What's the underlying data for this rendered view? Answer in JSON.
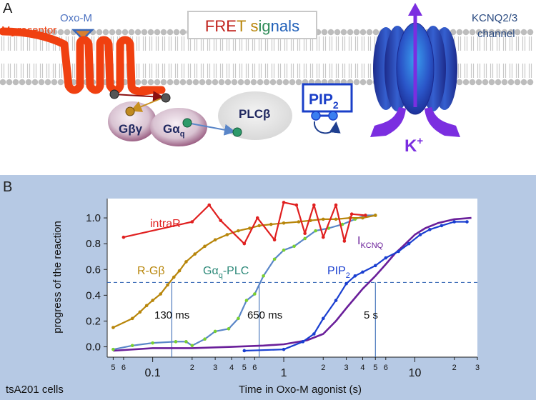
{
  "panelA": {
    "label": "A",
    "fret_box": {
      "letters": [
        {
          "ch": "F",
          "color": "#c0201a"
        },
        {
          "ch": "R",
          "color": "#c0201a"
        },
        {
          "ch": "E",
          "color": "#c0201a"
        },
        {
          "ch": "T",
          "color": "#b8860b"
        },
        {
          "ch": " ",
          "color": "#000000"
        },
        {
          "ch": "s",
          "color": "#b8860b"
        },
        {
          "ch": "i",
          "color": "#2e8b57"
        },
        {
          "ch": "g",
          "color": "#2e8b57"
        },
        {
          "ch": "n",
          "color": "#1f5fb8"
        },
        {
          "ch": "a",
          "color": "#1f5fb8"
        },
        {
          "ch": "l",
          "color": "#1f5fb8"
        },
        {
          "ch": "s",
          "color": "#1f5fb8"
        }
      ]
    },
    "m1_label": "M",
    "m1_sub": "1",
    "m1_rest": " receptor",
    "oxo_label": "Oxo-M",
    "gbg_label": "Gβγ",
    "gaq_main": "Gα",
    "gaq_sub": "q",
    "plc_label": "PLCβ",
    "pip_main": "PIP",
    "pip_sub": "2",
    "kcnq_line1": "KCNQ2/3",
    "kcnq_line2": "channel",
    "k_main": "K",
    "k_sup": "+",
    "colors": {
      "receptor": "#f04010",
      "channel": "#2a3fc0",
      "potassium": "#7b2ee0",
      "pip": "#1a3fc8"
    }
  },
  "panelB": {
    "label": "B",
    "cells_label": "tsA201 cells",
    "xlabel": "Time in Oxo-M agonist (s)",
    "ylabel": "progress of the reaction",
    "series_labels": {
      "intraR": "intraR",
      "rgb": "R-Gβ",
      "gaq_main": "Gα",
      "gaq_sub": "q",
      "gaq_rest": "-PLC",
      "pip_main": "PIP",
      "pip_sub": "2",
      "ik_main": "I",
      "ik_sub": "KCNQ"
    },
    "halftimes": [
      {
        "x": 0.14,
        "label": "130 ms"
      },
      {
        "x": 0.65,
        "label": "650 ms"
      },
      {
        "x": 5,
        "label": "5 s"
      }
    ]
  },
  "chart_data": {
    "type": "line",
    "xscale": "log",
    "xlim": [
      0.045,
      30
    ],
    "ylim": [
      -0.08,
      1.15
    ],
    "xticks_major": [
      0.1,
      1,
      10
    ],
    "xtick_labels_major": [
      "0.1",
      "1",
      "10"
    ],
    "xticks_minor": [
      0.05,
      0.06,
      0.2,
      0.3,
      0.4,
      0.5,
      0.6,
      2,
      3,
      4,
      5,
      6,
      20,
      30
    ],
    "xtick_labels_minor": [
      "5",
      "6",
      "2",
      "3",
      "4",
      "5",
      "6",
      "2",
      "3",
      "4",
      "5",
      "6",
      "2",
      "3"
    ],
    "yticks": [
      0.0,
      0.2,
      0.4,
      0.6,
      0.8,
      1.0
    ],
    "ytick_labels": [
      "0.0",
      "0.2",
      "0.4",
      "0.6",
      "0.8",
      "1.0"
    ],
    "hline": 0.5,
    "xlabel": "Time in Oxo-M agonist (s)",
    "ylabel": "progress of the reaction",
    "series": [
      {
        "name": "intraR",
        "color": "#e02020",
        "x": [
          0.06,
          0.2,
          0.27,
          0.33,
          0.5,
          0.63,
          0.85,
          1.0,
          1.25,
          1.45,
          1.7,
          2.0,
          2.5,
          2.9,
          3.3,
          4.2
        ],
        "y": [
          0.85,
          0.97,
          1.1,
          0.98,
          0.8,
          1.0,
          0.83,
          1.12,
          1.1,
          0.88,
          1.1,
          0.85,
          1.1,
          0.82,
          1.03,
          1.02
        ]
      },
      {
        "name": "R-Gβ",
        "color": "#b8860b",
        "x": [
          0.05,
          0.07,
          0.08,
          0.09,
          0.1,
          0.115,
          0.13,
          0.145,
          0.16,
          0.18,
          0.21,
          0.25,
          0.3,
          0.37,
          0.45,
          0.55,
          0.65,
          0.8,
          1.0,
          1.3,
          1.6,
          2.0,
          2.5,
          3.2,
          4.0,
          5.0
        ],
        "y": [
          0.15,
          0.22,
          0.27,
          0.32,
          0.36,
          0.41,
          0.48,
          0.54,
          0.59,
          0.66,
          0.72,
          0.78,
          0.83,
          0.87,
          0.9,
          0.92,
          0.94,
          0.95,
          0.96,
          0.97,
          0.98,
          0.99,
          0.99,
          1.0,
          1.0,
          1.02
        ]
      },
      {
        "name": "Gαq-PLC",
        "color": "#5a86c8",
        "x": [
          0.05,
          0.07,
          0.1,
          0.15,
          0.18,
          0.2,
          0.25,
          0.3,
          0.38,
          0.45,
          0.52,
          0.6,
          0.7,
          0.85,
          1.0,
          1.2,
          1.45,
          1.75,
          2.2,
          2.8,
          3.5,
          4.2,
          5.0
        ],
        "y": [
          -0.02,
          0.01,
          0.03,
          0.04,
          0.04,
          0.01,
          0.06,
          0.12,
          0.14,
          0.22,
          0.36,
          0.41,
          0.55,
          0.68,
          0.75,
          0.78,
          0.84,
          0.9,
          0.92,
          0.95,
          0.99,
          1.02,
          1.02
        ]
      },
      {
        "name": "PIP2",
        "color": "#1a3fd0",
        "x": [
          0.5,
          1.0,
          1.4,
          1.7,
          2.0,
          2.5,
          3.0,
          3.5,
          4.0,
          5.0,
          6.0,
          7.5,
          9.0,
          11,
          13,
          16,
          20,
          25
        ],
        "y": [
          -0.03,
          -0.02,
          0.04,
          0.1,
          0.22,
          0.36,
          0.49,
          0.55,
          0.58,
          0.63,
          0.69,
          0.74,
          0.8,
          0.87,
          0.91,
          0.94,
          0.97,
          0.97
        ]
      },
      {
        "name": "IKCNQ",
        "color": "#6a1f9a",
        "x": [
          0.05,
          0.1,
          0.2,
          0.4,
          0.7,
          1.0,
          1.5,
          2.0,
          2.5,
          3.0,
          3.5,
          4.0,
          5.0,
          6.0,
          7.0,
          8.5,
          10,
          12,
          15,
          20,
          27
        ],
        "y": [
          -0.03,
          -0.01,
          -0.01,
          0.0,
          0.01,
          0.02,
          0.05,
          0.1,
          0.2,
          0.3,
          0.38,
          0.45,
          0.55,
          0.64,
          0.72,
          0.8,
          0.87,
          0.92,
          0.96,
          0.99,
          1.0
        ]
      }
    ]
  }
}
